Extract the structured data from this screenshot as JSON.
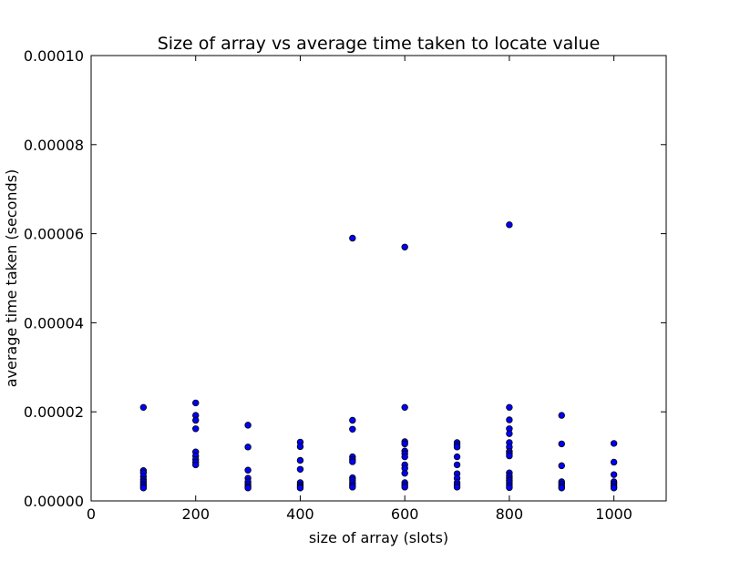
{
  "chart_data": {
    "type": "scatter",
    "title": "Size of array vs average time taken to locate value",
    "xlabel": "size of array (slots)",
    "ylabel": "average time taken (seconds)",
    "xlim": [
      0,
      1100
    ],
    "ylim": [
      0,
      0.0001
    ],
    "x_ticks": [
      0,
      200,
      400,
      600,
      800,
      1000
    ],
    "x_tick_labels": [
      "0",
      "200",
      "400",
      "600",
      "800",
      "1000"
    ],
    "y_ticks": [
      0,
      2e-05,
      4e-05,
      6e-05,
      8e-05,
      0.0001
    ],
    "y_tick_labels": [
      "0.00000",
      "0.00002",
      "0.00004",
      "0.00006",
      "0.00008",
      "0.00010"
    ],
    "grid": false,
    "marker_color": "#0000ff",
    "marker_edge_color": "#000000",
    "points": [
      {
        "x": 100,
        "y": 2.1e-05
      },
      {
        "x": 100,
        "y": 6.8e-06
      },
      {
        "x": 100,
        "y": 6.3e-06
      },
      {
        "x": 100,
        "y": 5.5e-06
      },
      {
        "x": 100,
        "y": 4.8e-06
      },
      {
        "x": 100,
        "y": 4.3e-06
      },
      {
        "x": 100,
        "y": 3.8e-06
      },
      {
        "x": 100,
        "y": 3.3e-06
      },
      {
        "x": 100,
        "y": 2.9e-06
      },
      {
        "x": 200,
        "y": 2.2e-05
      },
      {
        "x": 200,
        "y": 1.92e-05
      },
      {
        "x": 200,
        "y": 1.81e-05
      },
      {
        "x": 200,
        "y": 1.62e-05
      },
      {
        "x": 200,
        "y": 1.1e-05
      },
      {
        "x": 200,
        "y": 1.01e-05
      },
      {
        "x": 200,
        "y": 9.3e-06
      },
      {
        "x": 200,
        "y": 8.7e-06
      },
      {
        "x": 200,
        "y": 8.1e-06
      },
      {
        "x": 300,
        "y": 1.7e-05
      },
      {
        "x": 300,
        "y": 1.21e-05
      },
      {
        "x": 300,
        "y": 6.9e-06
      },
      {
        "x": 300,
        "y": 5.1e-06
      },
      {
        "x": 300,
        "y": 4.3e-06
      },
      {
        "x": 300,
        "y": 3.7e-06
      },
      {
        "x": 300,
        "y": 3.2e-06
      },
      {
        "x": 300,
        "y": 2.9e-06
      },
      {
        "x": 400,
        "y": 1.32e-05
      },
      {
        "x": 400,
        "y": 1.22e-05
      },
      {
        "x": 400,
        "y": 9.1e-06
      },
      {
        "x": 400,
        "y": 7.1e-06
      },
      {
        "x": 400,
        "y": 4.1e-06
      },
      {
        "x": 400,
        "y": 3.6e-06
      },
      {
        "x": 400,
        "y": 3.2e-06
      },
      {
        "x": 400,
        "y": 2.9e-06
      },
      {
        "x": 500,
        "y": 5.9e-05
      },
      {
        "x": 500,
        "y": 1.81e-05
      },
      {
        "x": 500,
        "y": 1.61e-05
      },
      {
        "x": 500,
        "y": 9.9e-06
      },
      {
        "x": 500,
        "y": 9.3e-06
      },
      {
        "x": 500,
        "y": 8.8e-06
      },
      {
        "x": 500,
        "y": 5.2e-06
      },
      {
        "x": 500,
        "y": 4.7e-06
      },
      {
        "x": 500,
        "y": 4.1e-06
      },
      {
        "x": 500,
        "y": 3.6e-06
      },
      {
        "x": 500,
        "y": 3.1e-06
      },
      {
        "x": 600,
        "y": 5.7e-05
      },
      {
        "x": 600,
        "y": 2.1e-05
      },
      {
        "x": 600,
        "y": 1.33e-05
      },
      {
        "x": 600,
        "y": 1.28e-05
      },
      {
        "x": 600,
        "y": 1.12e-05
      },
      {
        "x": 600,
        "y": 1.06e-05
      },
      {
        "x": 600,
        "y": 9.9e-06
      },
      {
        "x": 600,
        "y": 8.1e-06
      },
      {
        "x": 600,
        "y": 7.3e-06
      },
      {
        "x": 600,
        "y": 6.2e-06
      },
      {
        "x": 600,
        "y": 4.1e-06
      },
      {
        "x": 600,
        "y": 3.6e-06
      },
      {
        "x": 600,
        "y": 3.1e-06
      },
      {
        "x": 700,
        "y": 1.31e-05
      },
      {
        "x": 700,
        "y": 1.26e-05
      },
      {
        "x": 700,
        "y": 1.21e-05
      },
      {
        "x": 700,
        "y": 9.9e-06
      },
      {
        "x": 700,
        "y": 8.1e-06
      },
      {
        "x": 700,
        "y": 6.1e-06
      },
      {
        "x": 700,
        "y": 5.1e-06
      },
      {
        "x": 700,
        "y": 4.1e-06
      },
      {
        "x": 700,
        "y": 3.6e-06
      },
      {
        "x": 700,
        "y": 3.1e-06
      },
      {
        "x": 800,
        "y": 6.2e-05
      },
      {
        "x": 800,
        "y": 2.1e-05
      },
      {
        "x": 800,
        "y": 1.82e-05
      },
      {
        "x": 800,
        "y": 1.62e-05
      },
      {
        "x": 800,
        "y": 1.51e-05
      },
      {
        "x": 800,
        "y": 1.31e-05
      },
      {
        "x": 800,
        "y": 1.21e-05
      },
      {
        "x": 800,
        "y": 1.11e-05
      },
      {
        "x": 800,
        "y": 1.06e-05
      },
      {
        "x": 800,
        "y": 1.01e-05
      },
      {
        "x": 800,
        "y": 6.3e-06
      },
      {
        "x": 800,
        "y": 5.6e-06
      },
      {
        "x": 800,
        "y": 5.1e-06
      },
      {
        "x": 800,
        "y": 4.6e-06
      },
      {
        "x": 800,
        "y": 4.1e-06
      },
      {
        "x": 800,
        "y": 3.5e-06
      },
      {
        "x": 800,
        "y": 3e-06
      },
      {
        "x": 900,
        "y": 1.92e-05
      },
      {
        "x": 900,
        "y": 1.28e-05
      },
      {
        "x": 900,
        "y": 7.9e-06
      },
      {
        "x": 900,
        "y": 4.3e-06
      },
      {
        "x": 900,
        "y": 3.8e-06
      },
      {
        "x": 900,
        "y": 3.3e-06
      },
      {
        "x": 900,
        "y": 2.9e-06
      },
      {
        "x": 1000,
        "y": 1.29e-05
      },
      {
        "x": 1000,
        "y": 8.7e-06
      },
      {
        "x": 1000,
        "y": 5.9e-06
      },
      {
        "x": 1000,
        "y": 4.3e-06
      },
      {
        "x": 1000,
        "y": 3.8e-06
      },
      {
        "x": 1000,
        "y": 3.3e-06
      },
      {
        "x": 1000,
        "y": 2.9e-06
      }
    ]
  }
}
